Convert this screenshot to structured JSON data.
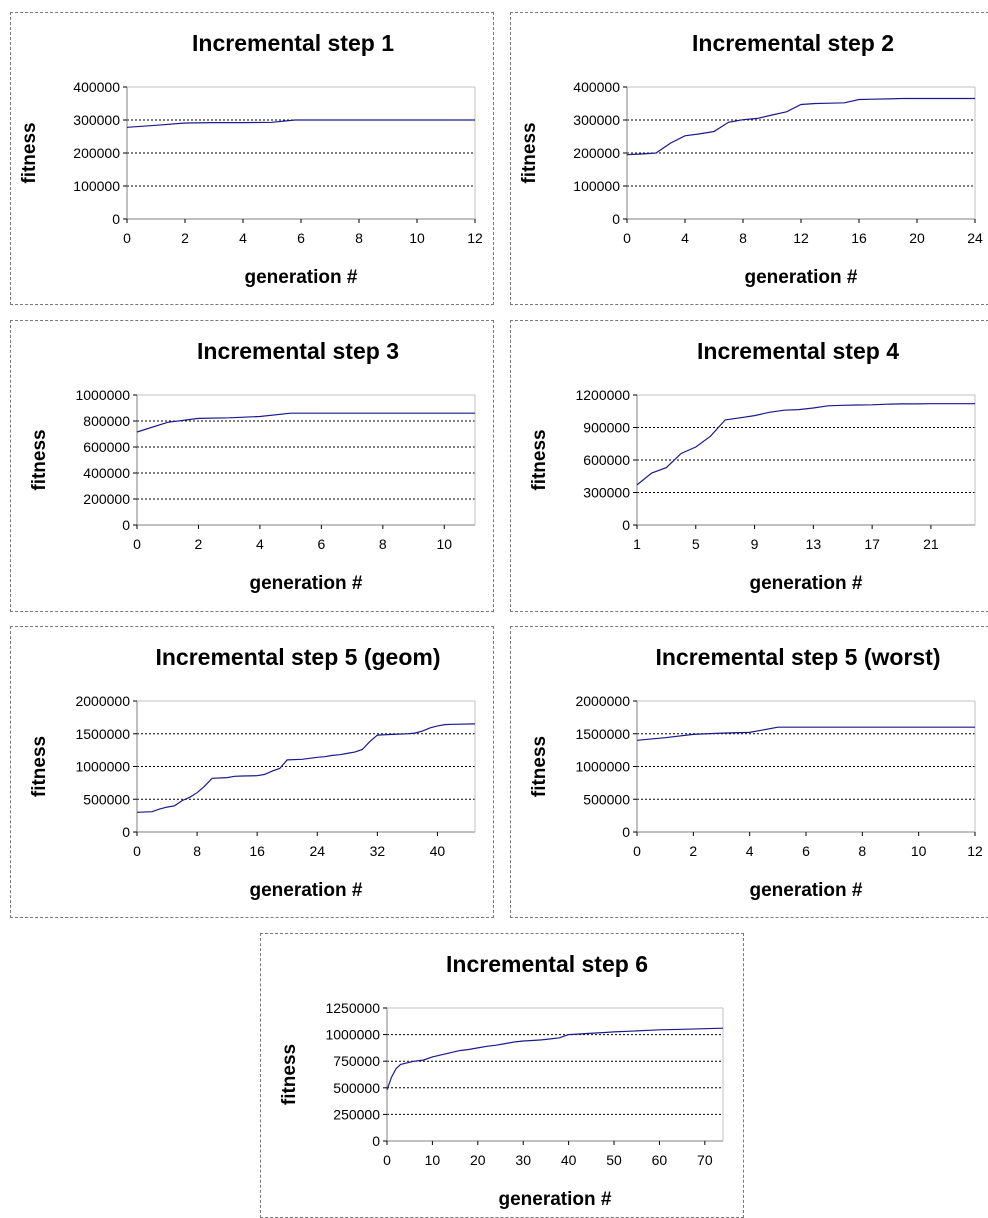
{
  "chart_data": [
    {
      "type": "line",
      "title": "Incremental step 1",
      "xlabel": "generation #",
      "ylabel": "fitness",
      "xlim": [
        0,
        12
      ],
      "ylim": [
        0,
        400000
      ],
      "xticks": [
        0,
        2,
        4,
        6,
        8,
        10,
        12
      ],
      "yticks": [
        0,
        100000,
        200000,
        300000,
        400000
      ],
      "ytick_labels": [
        "0",
        "100000",
        "200000",
        "300000",
        "400000"
      ],
      "grid": "horizontal dashed",
      "color": "#1a1a8c",
      "series": [
        {
          "x": [
            0,
            1,
            2,
            3,
            4,
            5,
            5.8,
            6,
            8,
            10,
            12
          ],
          "y": [
            278000,
            284000,
            291000,
            292000,
            292000,
            293000,
            300000,
            300000,
            300000,
            300000,
            300000
          ]
        }
      ]
    },
    {
      "type": "line",
      "title": "Incremental step 2",
      "xlabel": "generation #",
      "ylabel": "fitness",
      "xlim": [
        0,
        24
      ],
      "ylim": [
        0,
        400000
      ],
      "xticks": [
        0,
        4,
        8,
        12,
        16,
        20,
        24
      ],
      "yticks": [
        0,
        100000,
        200000,
        300000,
        400000
      ],
      "ytick_labels": [
        "0",
        "100000",
        "200000",
        "300000",
        "400000"
      ],
      "grid": "horizontal dashed",
      "color": "#1a1a8c",
      "series": [
        {
          "x": [
            0,
            1,
            2,
            3,
            4,
            5,
            6,
            7,
            8,
            9,
            10,
            11,
            12,
            13,
            14,
            15,
            16,
            17,
            18,
            19,
            20,
            21,
            22,
            23,
            24
          ],
          "y": [
            195000,
            197000,
            200000,
            230000,
            252000,
            258000,
            265000,
            293000,
            301000,
            305000,
            315000,
            325000,
            347000,
            350000,
            351000,
            352000,
            362000,
            363000,
            364000,
            365000,
            365000,
            365000,
            365000,
            365000,
            365000
          ]
        }
      ]
    },
    {
      "type": "line",
      "title": "Incremental step 3",
      "xlabel": "generation #",
      "ylabel": "fitness",
      "xlim": [
        0,
        11
      ],
      "ylim": [
        0,
        1000000
      ],
      "xticks": [
        0,
        2,
        4,
        6,
        8,
        10
      ],
      "yticks": [
        0,
        200000,
        400000,
        600000,
        800000,
        1000000
      ],
      "ytick_labels": [
        "0",
        "200000",
        "400000",
        "600000",
        "800000",
        "1000000"
      ],
      "grid": "horizontal dashed",
      "color": "#1a1a8c",
      "series": [
        {
          "x": [
            0,
            1,
            2,
            3,
            4,
            5,
            6,
            7,
            8,
            9,
            10,
            11
          ],
          "y": [
            715000,
            790000,
            820000,
            825000,
            835000,
            860000,
            860000,
            860000,
            860000,
            860000,
            860000,
            860000
          ]
        }
      ]
    },
    {
      "type": "line",
      "title": "Incremental step 4",
      "xlabel": "generation #",
      "ylabel": "fitness",
      "xlim": [
        1,
        24
      ],
      "ylim": [
        0,
        1200000
      ],
      "xticks": [
        1,
        5,
        9,
        13,
        17,
        21
      ],
      "yticks": [
        0,
        300000,
        600000,
        900000,
        1200000
      ],
      "ytick_labels": [
        "0",
        "300000",
        "600000",
        "900000",
        "1200000"
      ],
      "grid": "horizontal dashed",
      "color": "#1a1a8c",
      "series": [
        {
          "x": [
            1,
            2,
            3,
            4,
            5,
            6,
            7,
            8,
            9,
            10,
            11,
            12,
            13,
            14,
            15,
            16,
            17,
            18,
            19,
            20,
            21,
            22,
            23,
            24
          ],
          "y": [
            370000,
            480000,
            530000,
            660000,
            720000,
            820000,
            970000,
            990000,
            1010000,
            1040000,
            1060000,
            1065000,
            1080000,
            1100000,
            1105000,
            1108000,
            1110000,
            1115000,
            1118000,
            1118000,
            1120000,
            1120000,
            1120000,
            1120000
          ]
        }
      ]
    },
    {
      "type": "line",
      "title": "Incremental step 5 (geom)",
      "xlabel": "generation #",
      "ylabel": "fitness",
      "xlim": [
        0,
        45
      ],
      "ylim": [
        0,
        2000000
      ],
      "xticks": [
        0,
        8,
        16,
        24,
        32,
        40
      ],
      "yticks": [
        0,
        500000,
        1000000,
        1500000,
        2000000
      ],
      "ytick_labels": [
        "0",
        "500000",
        "1000000",
        "1500000",
        "2000000"
      ],
      "grid": "horizontal dashed",
      "color": "#1a1a8c",
      "series": [
        {
          "x": [
            0,
            2,
            3,
            4,
            5,
            6,
            7,
            8,
            9,
            10,
            12,
            13,
            14,
            16,
            17,
            18,
            19,
            20,
            22,
            24,
            25,
            26,
            27,
            28,
            29,
            30,
            31,
            32,
            34,
            36,
            37,
            38,
            39,
            40,
            41,
            42,
            45
          ],
          "y": [
            300000,
            310000,
            350000,
            380000,
            400000,
            480000,
            530000,
            600000,
            700000,
            820000,
            830000,
            850000,
            855000,
            860000,
            880000,
            930000,
            970000,
            1100000,
            1110000,
            1140000,
            1150000,
            1170000,
            1180000,
            1200000,
            1220000,
            1260000,
            1380000,
            1480000,
            1490000,
            1500000,
            1510000,
            1540000,
            1590000,
            1620000,
            1640000,
            1645000,
            1650000
          ]
        }
      ]
    },
    {
      "type": "line",
      "title": "Incremental step 5 (worst)",
      "xlabel": "generation #",
      "ylabel": "fitness",
      "xlim": [
        0,
        12
      ],
      "ylim": [
        0,
        2000000
      ],
      "xticks": [
        0,
        2,
        4,
        6,
        8,
        10,
        12
      ],
      "yticks": [
        0,
        500000,
        1000000,
        1500000,
        2000000
      ],
      "ytick_labels": [
        "0",
        "500000",
        "1000000",
        "1500000",
        "2000000"
      ],
      "grid": "horizontal dashed",
      "color": "#1a1a8c",
      "series": [
        {
          "x": [
            0,
            1,
            2,
            3,
            4,
            5,
            6,
            7,
            8,
            9,
            10,
            11,
            12
          ],
          "y": [
            1400000,
            1440000,
            1490000,
            1510000,
            1520000,
            1600000,
            1600000,
            1600000,
            1600000,
            1600000,
            1600000,
            1600000,
            1600000
          ]
        }
      ]
    },
    {
      "type": "line",
      "title": "Incremental step 6",
      "xlabel": "generation #",
      "ylabel": "fitness",
      "xlim": [
        0,
        74
      ],
      "ylim": [
        0,
        1250000
      ],
      "xticks": [
        0,
        10,
        20,
        30,
        40,
        50,
        60,
        70
      ],
      "yticks": [
        0,
        250000,
        500000,
        750000,
        1000000,
        1250000
      ],
      "ytick_labels": [
        "0",
        "250000",
        "500000",
        "750000",
        "1000000",
        "1250000"
      ],
      "grid": "horizontal dashed",
      "color": "#1a1a8c",
      "series": [
        {
          "x": [
            0,
            1,
            2,
            3,
            4,
            6,
            8,
            10,
            12,
            14,
            16,
            18,
            20,
            22,
            24,
            26,
            28,
            30,
            32,
            34,
            36,
            38,
            40,
            42,
            44,
            46,
            48,
            50,
            55,
            60,
            65,
            70,
            74
          ],
          "y": [
            480000,
            600000,
            680000,
            720000,
            730000,
            750000,
            760000,
            790000,
            810000,
            830000,
            850000,
            860000,
            875000,
            890000,
            900000,
            915000,
            930000,
            940000,
            945000,
            950000,
            960000,
            970000,
            1000000,
            1005000,
            1010000,
            1015000,
            1020000,
            1025000,
            1035000,
            1045000,
            1050000,
            1055000,
            1060000
          ]
        }
      ]
    }
  ]
}
